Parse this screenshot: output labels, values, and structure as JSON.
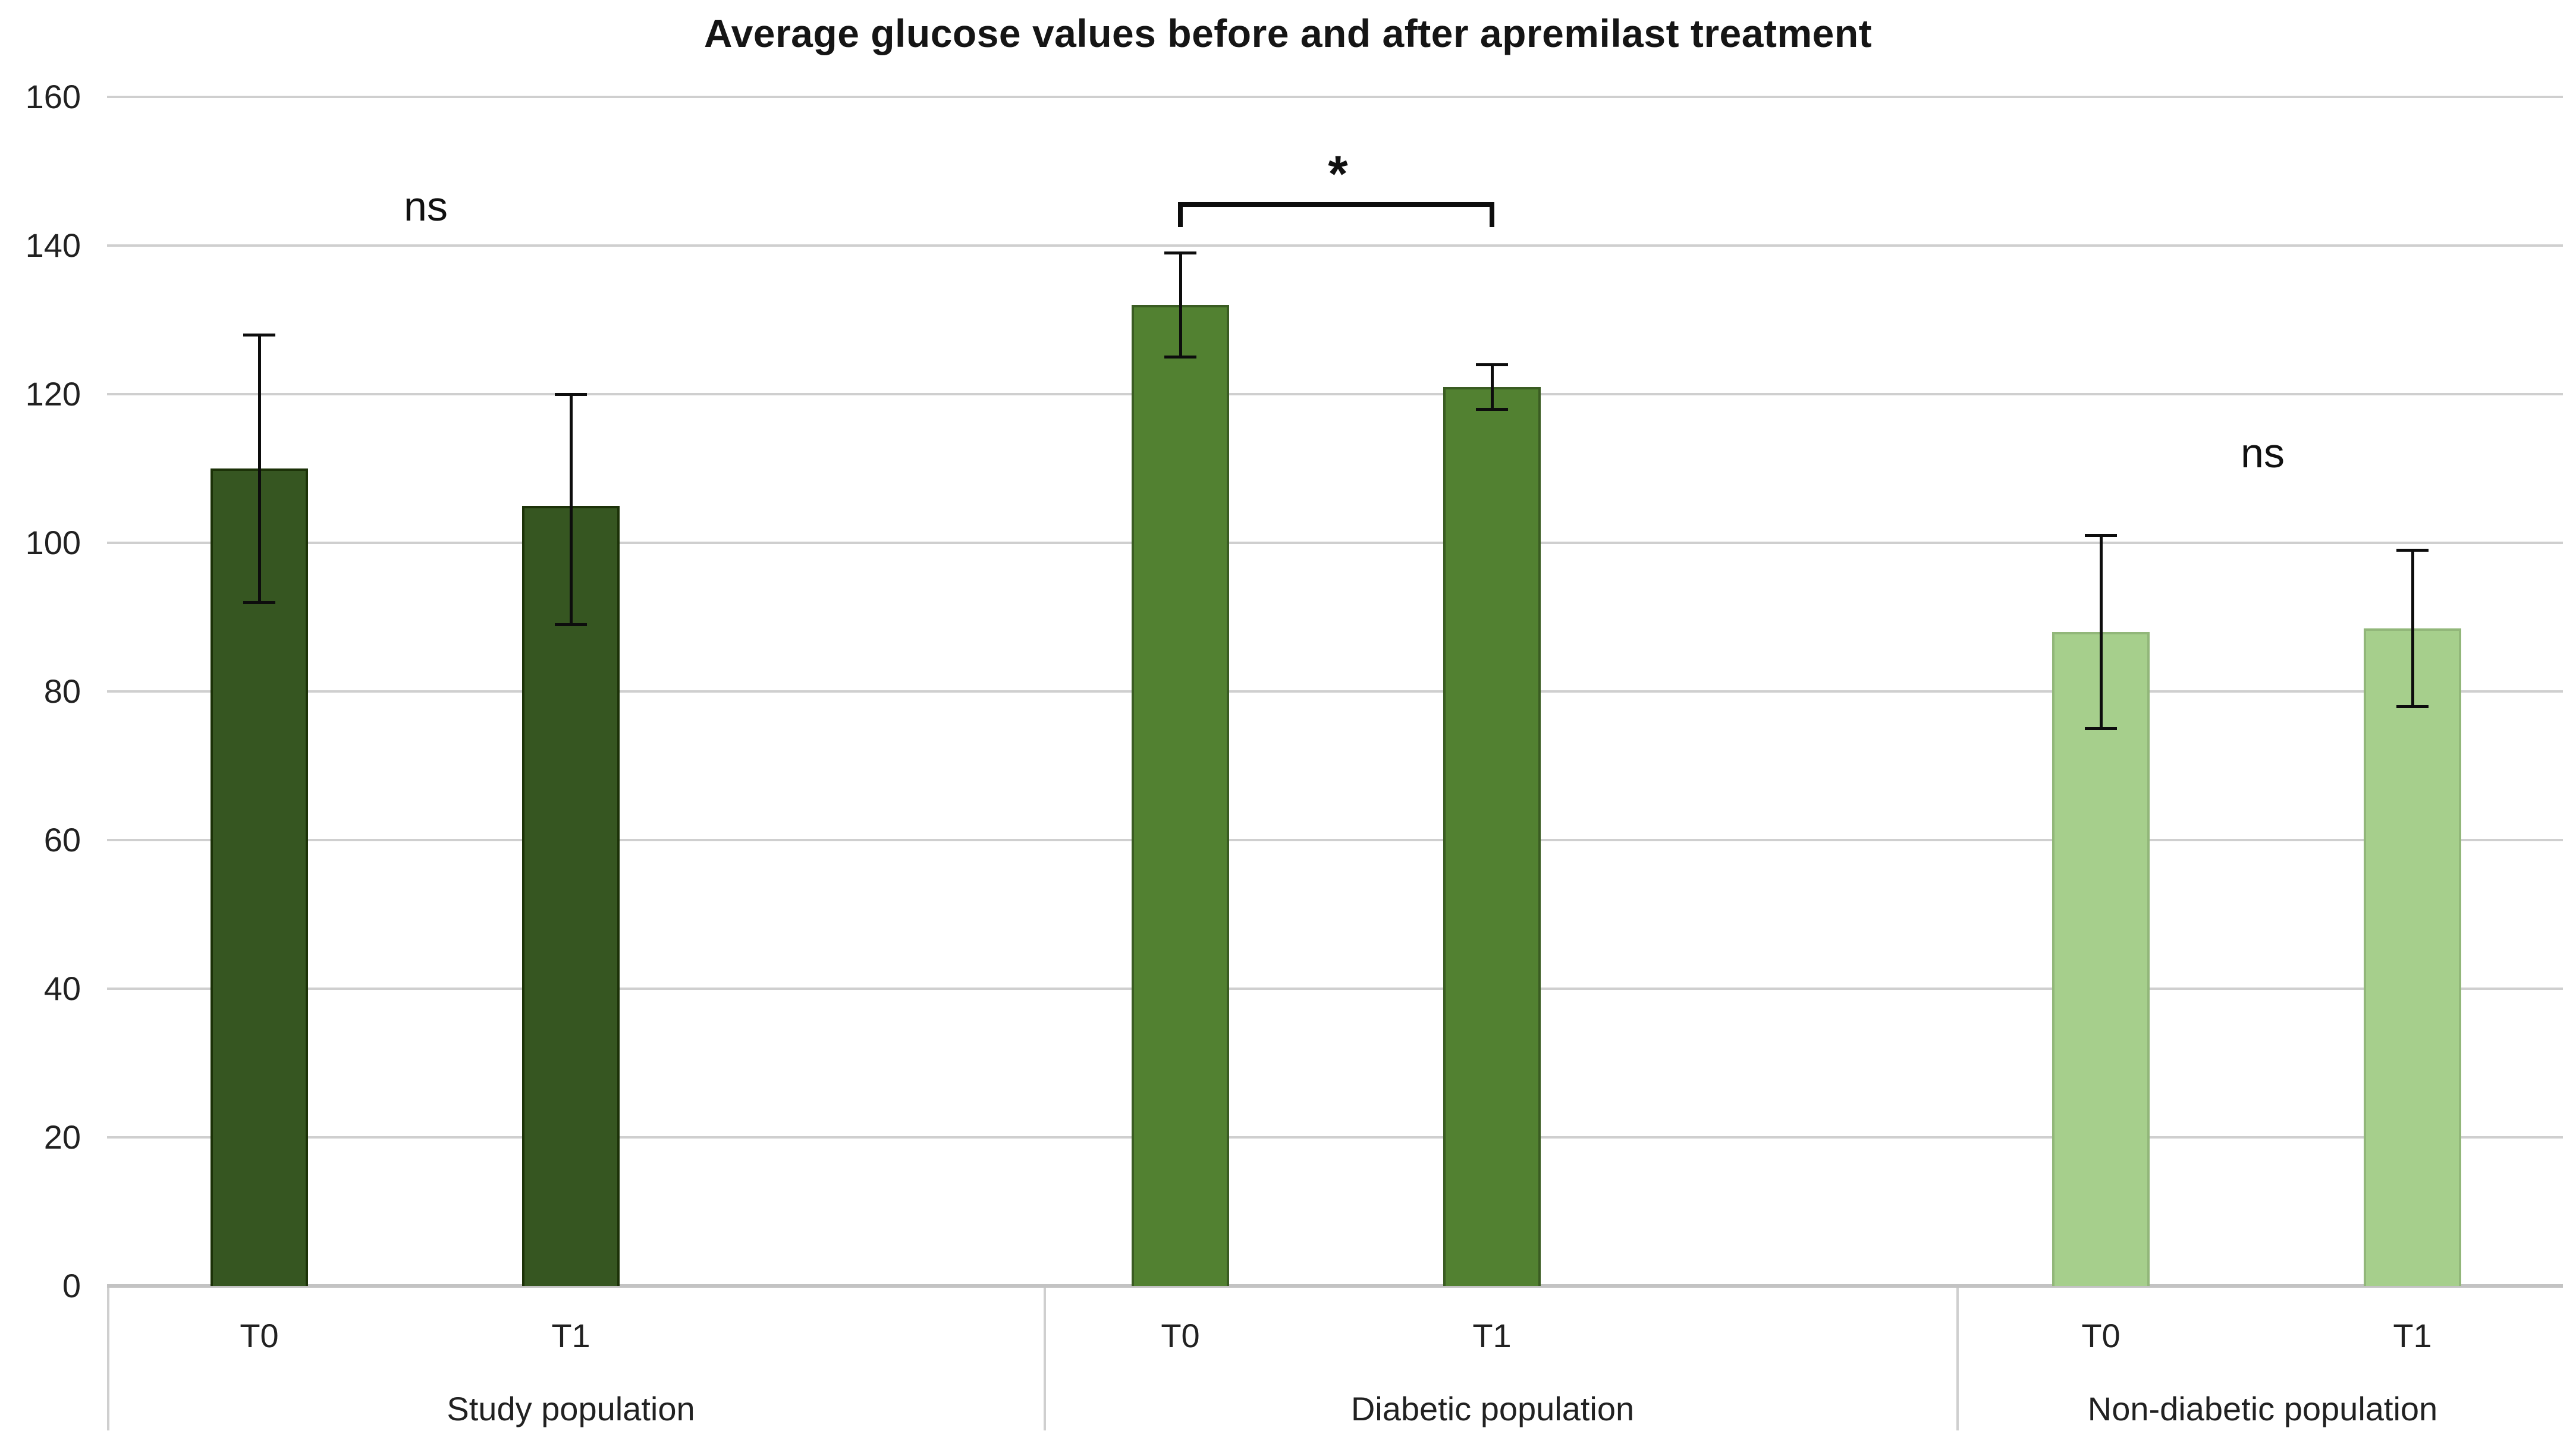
{
  "title": "Average glucose values before and after apremilast treatment",
  "chart_data": {
    "type": "bar",
    "title": "Average glucose values before and after apremilast treatment",
    "xlabel": "",
    "ylabel": "",
    "ylim": [
      0,
      160
    ],
    "ytick_step": 20,
    "yticks": [
      160,
      140,
      120,
      100,
      80,
      60,
      40,
      20,
      0
    ],
    "grid": true,
    "legend": false,
    "error_bars": true,
    "categories_per_group": [
      "T0",
      "T1"
    ],
    "groups": [
      {
        "label": "Study population",
        "significance": {
          "label": "ns",
          "bracket": false
        },
        "fill": "#365621",
        "border": "#1c3208",
        "bars": [
          {
            "label": "T0",
            "value": 110,
            "err_low": 92,
            "err_high": 128
          },
          {
            "label": "T1",
            "value": 105,
            "err_low": 89,
            "err_high": 120
          }
        ]
      },
      {
        "label": "Diabetic population",
        "significance": {
          "label": "*",
          "bracket": true
        },
        "fill": "#528131",
        "border": "#3a5c22",
        "bars": [
          {
            "label": "T0",
            "value": 132,
            "err_low": 125,
            "err_high": 139
          },
          {
            "label": "T1",
            "value": 121,
            "err_low": 118,
            "err_high": 124
          }
        ]
      },
      {
        "label": "Non-diabetic population",
        "significance": {
          "label": "ns",
          "bracket": false
        },
        "fill": "#a6cf8c",
        "border": "#92b77a",
        "bars": [
          {
            "label": "T0",
            "value": 88,
            "err_low": 75,
            "err_high": 101
          },
          {
            "label": "T1",
            "value": 88.5,
            "err_low": 78,
            "err_high": 99
          }
        ]
      }
    ]
  }
}
